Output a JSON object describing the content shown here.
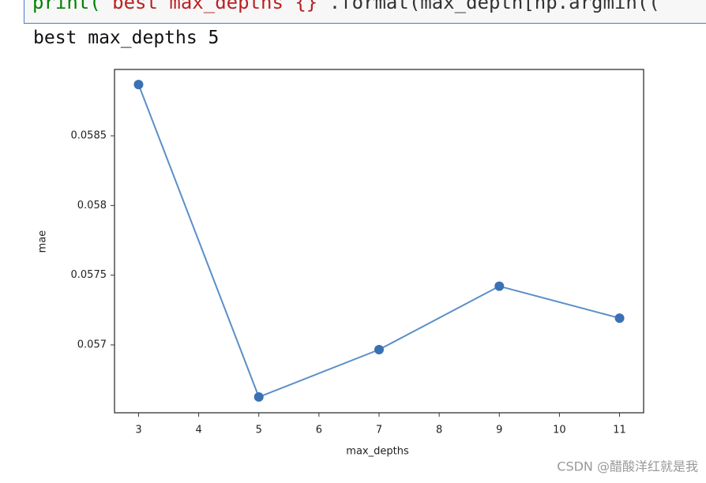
{
  "code": {
    "tokens": [
      "print(",
      "'best max_depths {}'",
      ".format(",
      "max_depth[np.argmin(("
    ]
  },
  "output": "best max_depths 5",
  "chart_data": {
    "type": "line",
    "x_label": "max_depths",
    "y_label": "mae",
    "x": [
      3,
      5,
      7,
      9,
      11
    ],
    "series": [
      {
        "name": "mae",
        "color": "#5b8fc7",
        "marker_color": "#3b70b3",
        "values": [
          0.058868,
          0.056626,
          0.056966,
          0.057421,
          0.057192
        ]
      }
    ],
    "xlim": [
      2.6,
      11.4
    ],
    "xticks": [
      3,
      4,
      5,
      6,
      7,
      8,
      9,
      10,
      11
    ],
    "ylim": [
      0.056513,
      0.058976
    ],
    "yticks": [
      0.057,
      0.0575,
      0.058,
      0.0585
    ]
  },
  "watermark": "CSDN @醋酸洋红就是我"
}
